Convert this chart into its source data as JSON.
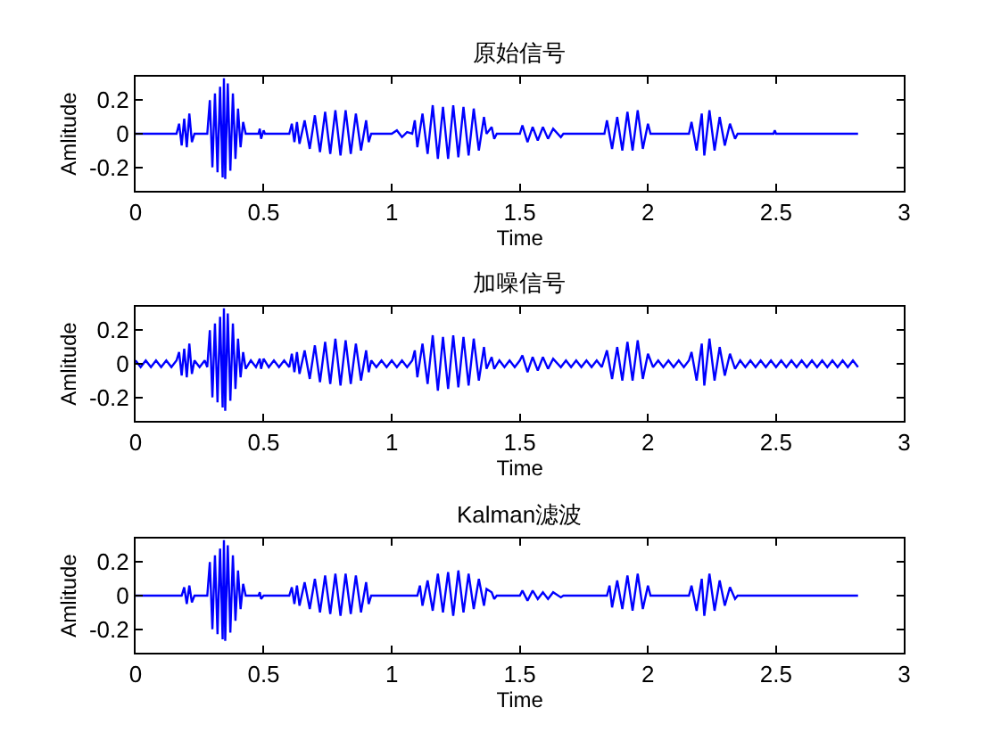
{
  "chart_data": [
    {
      "type": "line",
      "title": "原始信号",
      "xlabel": "Time",
      "ylabel": "Amlitude",
      "xlim": [
        0,
        3
      ],
      "xticks": [
        0,
        0.5,
        1,
        1.5,
        2,
        2.5,
        3
      ],
      "ylim": [
        -0.34,
        0.34
      ],
      "yticks": [
        -0.2,
        0,
        0.2
      ],
      "series": [
        {
          "color": "#0000ff",
          "x": [
            0,
            0.16,
            0.17,
            0.18,
            0.19,
            0.2,
            0.21,
            0.22,
            0.23,
            0.28,
            0.29,
            0.3,
            0.31,
            0.32,
            0.33,
            0.34,
            0.345,
            0.35,
            0.36,
            0.37,
            0.38,
            0.39,
            0.4,
            0.41,
            0.42,
            0.43,
            0.48,
            0.485,
            0.49,
            0.5,
            0.505,
            0.6,
            0.61,
            0.62,
            0.63,
            0.64,
            0.66,
            0.68,
            0.7,
            0.72,
            0.74,
            0.76,
            0.78,
            0.8,
            0.82,
            0.84,
            0.86,
            0.88,
            0.9,
            0.91,
            0.92,
            1.0,
            1.02,
            1.04,
            1.06,
            1.08,
            1.09,
            1.1,
            1.12,
            1.14,
            1.16,
            1.18,
            1.2,
            1.22,
            1.24,
            1.26,
            1.28,
            1.3,
            1.32,
            1.34,
            1.36,
            1.37,
            1.39,
            1.4,
            1.41,
            1.5,
            1.51,
            1.53,
            1.55,
            1.57,
            1.59,
            1.61,
            1.63,
            1.66,
            1.67,
            1.83,
            1.84,
            1.86,
            1.88,
            1.9,
            1.92,
            1.94,
            1.96,
            1.98,
            2.0,
            2.01,
            2.16,
            2.17,
            2.19,
            2.21,
            2.22,
            2.24,
            2.26,
            2.28,
            2.3,
            2.32,
            2.34,
            2.35,
            2.49,
            2.495,
            2.5,
            2.82
          ],
          "values": [
            0,
            0,
            0.06,
            -0.07,
            0.09,
            -0.08,
            0.12,
            -0.05,
            0,
            0,
            0.2,
            -0.2,
            0.24,
            -0.23,
            0.28,
            -0.26,
            0.33,
            -0.27,
            0.3,
            -0.22,
            0.24,
            -0.15,
            0.15,
            -0.08,
            0.07,
            0,
            0,
            0.03,
            -0.03,
            0.02,
            0,
            0,
            0.06,
            -0.05,
            0.07,
            -0.06,
            0.08,
            -0.09,
            0.11,
            -0.11,
            0.13,
            -0.12,
            0.14,
            -0.13,
            0.14,
            -0.12,
            0.12,
            -0.1,
            0.08,
            -0.05,
            0,
            0,
            0.02,
            -0.02,
            0.01,
            0,
            0.08,
            -0.08,
            0.12,
            -0.12,
            0.17,
            -0.15,
            0.16,
            -0.15,
            0.17,
            -0.14,
            0.16,
            -0.13,
            0.15,
            -0.1,
            0.1,
            0,
            0.04,
            -0.03,
            0,
            0,
            0.05,
            -0.05,
            0.04,
            -0.04,
            0.04,
            -0.03,
            0.03,
            -0.02,
            0,
            0,
            0.08,
            -0.09,
            0.1,
            -0.1,
            0.13,
            -0.1,
            0.14,
            -0.09,
            0.06,
            0,
            0,
            0.07,
            -0.1,
            0.12,
            -0.13,
            0.14,
            -0.1,
            0.1,
            -0.07,
            0.06,
            -0.03,
            0,
            0,
            0.02,
            0,
            0
          ]
        }
      ]
    },
    {
      "type": "line",
      "title": "加噪信号",
      "xlabel": "Time",
      "ylabel": "Amlitude",
      "xlim": [
        0,
        3
      ],
      "xticks": [
        0,
        0.5,
        1,
        1.5,
        2,
        2.5,
        3
      ],
      "ylim": [
        -0.34,
        0.34
      ],
      "yticks": [
        -0.2,
        0,
        0.2
      ],
      "series": [
        {
          "color": "#0000ff",
          "x": [
            0,
            0.02,
            0.04,
            0.06,
            0.08,
            0.1,
            0.12,
            0.14,
            0.16,
            0.17,
            0.18,
            0.19,
            0.2,
            0.21,
            0.22,
            0.23,
            0.25,
            0.27,
            0.28,
            0.29,
            0.3,
            0.31,
            0.32,
            0.33,
            0.34,
            0.345,
            0.35,
            0.36,
            0.37,
            0.38,
            0.39,
            0.4,
            0.41,
            0.42,
            0.43,
            0.45,
            0.47,
            0.485,
            0.49,
            0.5,
            0.52,
            0.54,
            0.56,
            0.58,
            0.6,
            0.61,
            0.62,
            0.63,
            0.64,
            0.66,
            0.68,
            0.7,
            0.72,
            0.74,
            0.76,
            0.78,
            0.8,
            0.82,
            0.84,
            0.86,
            0.88,
            0.9,
            0.91,
            0.92,
            0.94,
            0.96,
            0.98,
            1.0,
            1.02,
            1.04,
            1.06,
            1.08,
            1.09,
            1.1,
            1.12,
            1.14,
            1.16,
            1.18,
            1.2,
            1.22,
            1.24,
            1.26,
            1.28,
            1.3,
            1.32,
            1.34,
            1.36,
            1.37,
            1.39,
            1.4,
            1.42,
            1.44,
            1.46,
            1.48,
            1.5,
            1.51,
            1.53,
            1.55,
            1.57,
            1.59,
            1.61,
            1.63,
            1.66,
            1.68,
            1.7,
            1.72,
            1.74,
            1.76,
            1.78,
            1.8,
            1.82,
            1.84,
            1.86,
            1.88,
            1.9,
            1.92,
            1.94,
            1.96,
            1.98,
            2.0,
            2.02,
            2.04,
            2.06,
            2.08,
            2.1,
            2.12,
            2.14,
            2.16,
            2.17,
            2.19,
            2.21,
            2.22,
            2.24,
            2.26,
            2.28,
            2.3,
            2.32,
            2.34,
            2.36,
            2.38,
            2.4,
            2.42,
            2.44,
            2.46,
            2.48,
            2.5,
            2.52,
            2.54,
            2.56,
            2.58,
            2.6,
            2.62,
            2.64,
            2.66,
            2.68,
            2.7,
            2.72,
            2.74,
            2.76,
            2.78,
            2.8,
            2.82
          ],
          "values": [
            0.02,
            -0.02,
            0.02,
            -0.02,
            0.02,
            -0.02,
            0.02,
            -0.02,
            0.02,
            0.07,
            -0.07,
            0.09,
            -0.08,
            0.12,
            -0.06,
            0.02,
            -0.02,
            0.02,
            -0.02,
            0.2,
            -0.2,
            0.24,
            -0.23,
            0.28,
            -0.26,
            0.33,
            -0.28,
            0.3,
            -0.22,
            0.24,
            -0.15,
            0.15,
            -0.08,
            0.07,
            -0.03,
            0.02,
            -0.02,
            0.03,
            -0.03,
            0.03,
            -0.02,
            0.02,
            -0.02,
            0.02,
            -0.02,
            0.06,
            -0.05,
            0.07,
            -0.06,
            0.08,
            -0.09,
            0.11,
            -0.11,
            0.13,
            -0.12,
            0.15,
            -0.13,
            0.14,
            -0.12,
            0.12,
            -0.1,
            0.08,
            -0.05,
            0.02,
            -0.02,
            0.02,
            -0.02,
            0.02,
            -0.02,
            0.02,
            -0.02,
            0.02,
            0.08,
            -0.08,
            0.12,
            -0.12,
            0.17,
            -0.16,
            0.16,
            -0.15,
            0.17,
            -0.14,
            0.16,
            -0.13,
            0.15,
            -0.1,
            0.1,
            -0.03,
            0.04,
            -0.03,
            0.02,
            -0.02,
            0.02,
            -0.02,
            0.02,
            0.05,
            -0.05,
            0.04,
            -0.04,
            0.04,
            -0.03,
            0.03,
            -0.02,
            0.02,
            -0.02,
            0.02,
            -0.02,
            0.02,
            -0.02,
            0.02,
            -0.02,
            0.08,
            -0.09,
            0.1,
            -0.1,
            0.13,
            -0.1,
            0.14,
            -0.09,
            0.06,
            -0.02,
            0.02,
            -0.02,
            0.02,
            -0.02,
            0.02,
            -0.02,
            0.02,
            0.07,
            -0.1,
            0.12,
            -0.13,
            0.15,
            -0.1,
            0.1,
            -0.07,
            0.06,
            -0.03,
            0.02,
            -0.02,
            0.02,
            -0.02,
            0.02,
            -0.02,
            0.02,
            -0.02,
            0.02,
            -0.02,
            0.02,
            -0.02,
            0.02,
            -0.02,
            0.02,
            -0.02,
            0.02,
            -0.02,
            0.02,
            -0.02,
            0.02,
            -0.02,
            0.02,
            -0.02
          ]
        }
      ]
    },
    {
      "type": "line",
      "title": "Kalman滤波",
      "xlabel": "Time",
      "ylabel": "Amlitude",
      "xlim": [
        0,
        3
      ],
      "xticks": [
        0,
        0.5,
        1,
        1.5,
        2,
        2.5,
        3
      ],
      "ylim": [
        -0.34,
        0.34
      ],
      "yticks": [
        -0.2,
        0,
        0.2
      ],
      "series": [
        {
          "color": "#0000ff",
          "x": [
            0,
            0.18,
            0.19,
            0.2,
            0.21,
            0.22,
            0.23,
            0.28,
            0.29,
            0.3,
            0.31,
            0.32,
            0.33,
            0.34,
            0.345,
            0.35,
            0.36,
            0.37,
            0.38,
            0.39,
            0.4,
            0.41,
            0.42,
            0.43,
            0.48,
            0.485,
            0.49,
            0.5,
            0.6,
            0.61,
            0.62,
            0.63,
            0.64,
            0.66,
            0.68,
            0.7,
            0.72,
            0.74,
            0.76,
            0.78,
            0.8,
            0.82,
            0.84,
            0.86,
            0.88,
            0.9,
            0.91,
            0.92,
            1.1,
            1.11,
            1.12,
            1.14,
            1.16,
            1.18,
            1.2,
            1.22,
            1.24,
            1.26,
            1.28,
            1.3,
            1.32,
            1.34,
            1.36,
            1.37,
            1.39,
            1.4,
            1.41,
            1.5,
            1.51,
            1.53,
            1.55,
            1.57,
            1.59,
            1.61,
            1.63,
            1.66,
            1.67,
            1.84,
            1.85,
            1.86,
            1.88,
            1.9,
            1.92,
            1.94,
            1.96,
            1.98,
            2.0,
            2.01,
            2.16,
            2.17,
            2.19,
            2.21,
            2.22,
            2.24,
            2.26,
            2.28,
            2.3,
            2.32,
            2.34,
            2.35,
            2.82
          ],
          "values": [
            0,
            0,
            0.05,
            -0.05,
            0.06,
            -0.04,
            0,
            0,
            0.2,
            -0.2,
            0.24,
            -0.23,
            0.28,
            -0.26,
            0.33,
            -0.27,
            0.3,
            -0.22,
            0.24,
            -0.15,
            0.15,
            -0.08,
            0.07,
            0,
            0,
            0.02,
            -0.02,
            0,
            0,
            0.05,
            -0.05,
            0.06,
            -0.06,
            0.08,
            -0.08,
            0.1,
            -0.1,
            0.12,
            -0.11,
            0.13,
            -0.12,
            0.13,
            -0.11,
            0.12,
            -0.1,
            0.08,
            -0.05,
            0,
            0,
            0.06,
            -0.06,
            0.09,
            -0.09,
            0.13,
            -0.1,
            0.14,
            -0.12,
            0.15,
            -0.1,
            0.13,
            -0.08,
            0.1,
            -0.06,
            0.04,
            0.02,
            -0.02,
            0,
            0,
            0.03,
            -0.03,
            0.03,
            -0.02,
            0.02,
            -0.02,
            0.02,
            -0.01,
            0,
            0,
            0.06,
            -0.07,
            0.09,
            -0.08,
            0.12,
            -0.09,
            0.13,
            -0.08,
            0.06,
            0,
            0,
            0.06,
            -0.09,
            0.1,
            -0.12,
            0.13,
            -0.09,
            0.09,
            -0.06,
            0.05,
            -0.02,
            0,
            0
          ]
        }
      ]
    }
  ]
}
